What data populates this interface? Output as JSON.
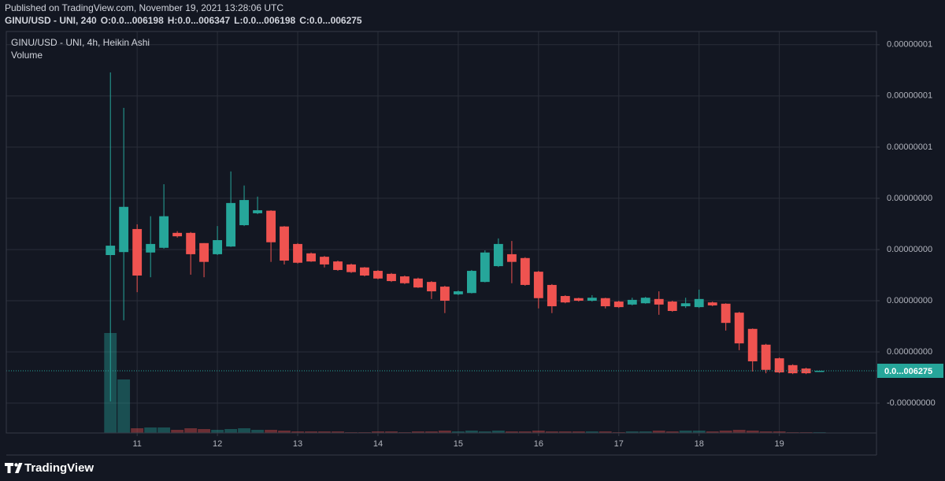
{
  "header": {
    "published": "Published on TradingView.com, November 19, 2021 13:28:06 UTC",
    "symbol": "GINU/USD - UNI, 240",
    "open_label": "O:0.0...006198",
    "high_label": "H:0.0...006347",
    "low_label": "L:0.0...006198",
    "close_label": "C:0.0...006275"
  },
  "footer": "TradingView",
  "chart_data": {
    "type": "candlestick",
    "title": "GINU/USD - UNI, 4h, Heikin Ashi",
    "volume_title": "Volume",
    "last_price_label": "0.0...006275",
    "up_color": "#26a69a",
    "down_color": "#ef5350",
    "grid": true,
    "x": [
      10.667,
      10.833,
      11,
      11.167,
      11.333,
      11.5,
      11.667,
      11.833,
      12,
      12.167,
      12.333,
      12.5,
      12.667,
      12.833,
      13,
      13.167,
      13.333,
      13.5,
      13.667,
      13.833,
      14,
      14.167,
      14.333,
      14.5,
      14.667,
      14.833,
      15,
      15.167,
      15.333,
      15.5,
      15.667,
      15.833,
      16,
      16.167,
      16.333,
      16.5,
      16.667,
      16.833,
      17,
      17.167,
      17.333,
      17.5,
      17.667,
      17.833,
      18,
      18.167,
      18.333,
      18.5,
      18.667,
      18.833,
      19,
      19.167,
      19.333,
      19.5
    ],
    "open": [
      3.34e-09,
      3.41e-09,
      3.95e-09,
      3.4e-09,
      3.51e-09,
      3.86e-09,
      3.86e-09,
      3.62e-09,
      3.36e-09,
      3.54e-09,
      4.04e-09,
      4.32e-09,
      4.38e-09,
      4.01e-09,
      3.6e-09,
      3.38e-09,
      3.3e-09,
      3.19e-09,
      3.12e-09,
      3.05e-09,
      2.97e-09,
      2.9e-09,
      2.84e-09,
      2.79e-09,
      2.71e-09,
      2.6e-09,
      2.42e-09,
      2.45e-09,
      2.71e-09,
      3.08e-09,
      3.36e-09,
      3.27e-09,
      2.95e-09,
      2.64e-09,
      2.38e-09,
      2.33e-09,
      2.27e-09,
      2.33e-09,
      2.25e-09,
      2.18e-09,
      2.21e-09,
      2.31e-09,
      2.25e-09,
      2.14e-09,
      2.12e-09,
      2.23e-09,
      2.2e-09,
      1.99e-09,
      1.61e-09,
      1.24e-09,
      9.2e-10,
      7.6e-10,
      6.8e-10,
      6.198e-10
    ],
    "high": [
      7.62e-09,
      6.79e-09,
      4.06e-09,
      4.25e-09,
      5e-09,
      3.9e-09,
      3.88e-09,
      3.62e-09,
      4.02e-09,
      5.3e-09,
      4.97e-09,
      4.71e-09,
      4.39e-09,
      4.02e-09,
      3.62e-09,
      3.4e-09,
      3.32e-09,
      3.21e-09,
      3.14e-09,
      3.06e-09,
      2.99e-09,
      2.92e-09,
      2.86e-09,
      2.81e-09,
      2.73e-09,
      2.62e-09,
      2.51e-09,
      2.99e-09,
      3.45e-09,
      3.73e-09,
      3.67e-09,
      3.29e-09,
      2.97e-09,
      2.66e-09,
      2.4e-09,
      2.34e-09,
      2.4e-09,
      2.34e-09,
      2.27e-09,
      2.34e-09,
      2.36e-09,
      2.49e-09,
      2.27e-09,
      2.34e-09,
      2.53e-09,
      2.25e-09,
      2.21e-09,
      2.01e-09,
      1.62e-09,
      1.26e-09,
      9.4e-10,
      7.8e-10,
      7e-10,
      6.347e-10
    ],
    "low": [
      -9e-11,
      1.81e-09,
      2.47e-09,
      2.82e-09,
      3.49e-09,
      3.75e-09,
      2.88e-09,
      2.82e-09,
      3.34e-09,
      3.53e-09,
      4.02e-09,
      4.3e-09,
      3.18e-09,
      3.12e-09,
      3.14e-09,
      3.18e-09,
      3.05e-09,
      2.97e-09,
      2.92e-09,
      2.84e-09,
      2.77e-09,
      2.71e-09,
      2.66e-09,
      2.57e-09,
      2.31e-09,
      1.98e-09,
      2.4e-09,
      2.44e-09,
      2.7e-09,
      3.06e-09,
      2.68e-09,
      2.62e-09,
      2.09e-09,
      1.98e-09,
      2.21e-09,
      2.25e-09,
      2.25e-09,
      2.09e-09,
      2.1e-09,
      2.16e-09,
      2.2e-09,
      1.94e-09,
      2.01e-09,
      2.1e-09,
      2.1e-09,
      2.14e-09,
      1.57e-09,
      1.11e-09,
      6.1e-10,
      5.7e-10,
      5.7e-10,
      5.5e-10,
      5.5e-10,
      6.198e-10
    ],
    "close": [
      3.56e-09,
      4.47e-09,
      2.86e-09,
      3.6e-09,
      4.25e-09,
      3.78e-09,
      3.36e-09,
      3.18e-09,
      3.69e-09,
      4.56e-09,
      4.63e-09,
      4.39e-09,
      3.64e-09,
      3.21e-09,
      3.16e-09,
      3.19e-09,
      3.12e-09,
      2.99e-09,
      2.94e-09,
      2.86e-09,
      2.79e-09,
      2.73e-09,
      2.68e-09,
      2.58e-09,
      2.49e-09,
      2.27e-09,
      2.49e-09,
      2.97e-09,
      3.4e-09,
      3.6e-09,
      3.18e-09,
      2.64e-09,
      2.33e-09,
      2.14e-09,
      2.23e-09,
      2.27e-09,
      2.34e-09,
      2.14e-09,
      2.12e-09,
      2.29e-09,
      2.34e-09,
      2.18e-09,
      2.03e-09,
      2.21e-09,
      2.31e-09,
      2.16e-09,
      1.75e-09,
      1.27e-09,
      8.5e-10,
      6.5e-10,
      5.9e-10,
      5.7e-10,
      5.7e-10,
      6.275e-10
    ],
    "volume": [
      127,
      68,
      6,
      7,
      7,
      4,
      6,
      5,
      4,
      5,
      6,
      4,
      4,
      3,
      2,
      2,
      2,
      2,
      1,
      1,
      2,
      2,
      1,
      2,
      2,
      3,
      2,
      3,
      2,
      3,
      2,
      2,
      3,
      2,
      2,
      2,
      2,
      2,
      1,
      2,
      2,
      3,
      2,
      3,
      3,
      2,
      3,
      4,
      3,
      2,
      2,
      1,
      1,
      1
    ],
    "xlim": [
      9.37,
      20.21
    ],
    "xticks": [
      11,
      12,
      13,
      14,
      15,
      16,
      17,
      18,
      19
    ],
    "ylim": [
      -8.3e-10,
      8.58e-09
    ],
    "yticks": [
      {
        "value": -1.3e-10,
        "label": "-0.00000000"
      },
      {
        "value": 1.07e-09,
        "label": "0.00000000"
      },
      {
        "value": 2.27e-09,
        "label": "0.00000000"
      },
      {
        "value": 3.47e-09,
        "label": "0.00000000"
      },
      {
        "value": 4.67e-09,
        "label": "0.00000000"
      },
      {
        "value": 5.87e-09,
        "label": "0.00000001"
      },
      {
        "value": 7.07e-09,
        "label": "0.00000001"
      },
      {
        "value": 8.27e-09,
        "label": "0.00000001"
      }
    ]
  }
}
